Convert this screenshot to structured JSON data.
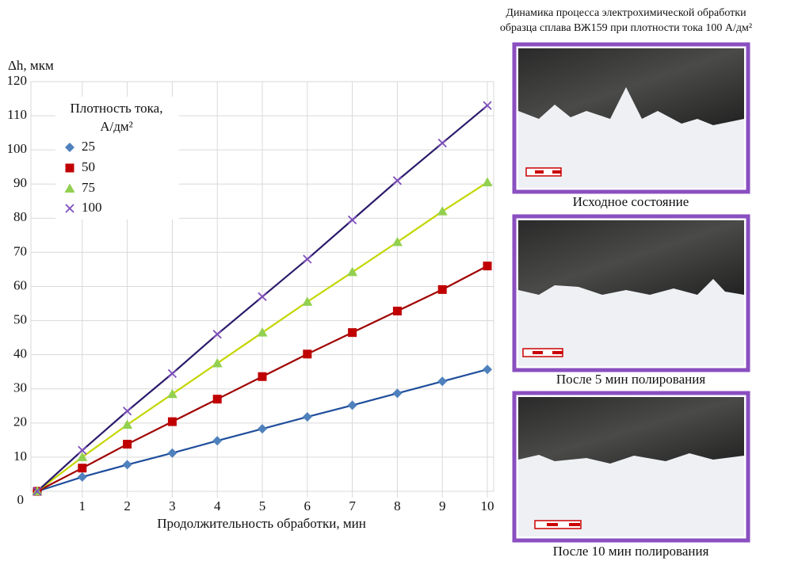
{
  "chart_data": {
    "type": "line",
    "ylabel": "Δh, мкм",
    "xlabel": "Продолжительность обработки, мин",
    "legend_title": [
      "Плотность тока,",
      "А/дм²"
    ],
    "x": [
      0,
      1,
      2,
      3,
      4,
      5,
      6,
      7,
      8,
      9,
      10
    ],
    "series": [
      {
        "name": "25",
        "color": "#4f81bd",
        "line_color": "#1f4e9c",
        "marker": "diamond",
        "values": [
          0,
          4.2,
          7.8,
          11.2,
          14.8,
          18.3,
          21.8,
          25.2,
          28.7,
          32.2,
          35.7
        ]
      },
      {
        "name": "50",
        "color": "#c00000",
        "line_color": "#a00000",
        "marker": "square",
        "values": [
          0,
          6.8,
          13.8,
          20.4,
          27,
          33.6,
          40.2,
          46.5,
          52.8,
          59.1,
          66
        ]
      },
      {
        "name": "75",
        "color": "#92d050",
        "line_color": "#c4d600",
        "marker": "triangle",
        "values": [
          0,
          10,
          19.5,
          28.5,
          37.5,
          46.5,
          55.5,
          64.2,
          73,
          82,
          90.5
        ]
      },
      {
        "name": "100",
        "color": "#7f4fbd",
        "line_color": "#2b1a6b",
        "marker": "x",
        "values": [
          0,
          12,
          23.5,
          34.5,
          46,
          57,
          68,
          79.5,
          91,
          102,
          113
        ]
      }
    ],
    "xlim": [
      0,
      10
    ],
    "xticks": [
      1,
      2,
      3,
      4,
      5,
      6,
      7,
      8,
      9,
      10
    ],
    "ylim": [
      0,
      120
    ],
    "yticks": [
      0,
      10,
      20,
      30,
      40,
      50,
      60,
      70,
      80,
      90,
      100,
      110,
      120
    ],
    "grid": true
  },
  "micrographs": {
    "title": [
      "Динамика процесса электрохимической обработки",
      "образца сплава ВЖ159 при плотности тока 100 А/дм²"
    ],
    "captions": [
      "Исходное состояние",
      "После 5 мин полирования",
      "После 10 мин полирования"
    ]
  }
}
